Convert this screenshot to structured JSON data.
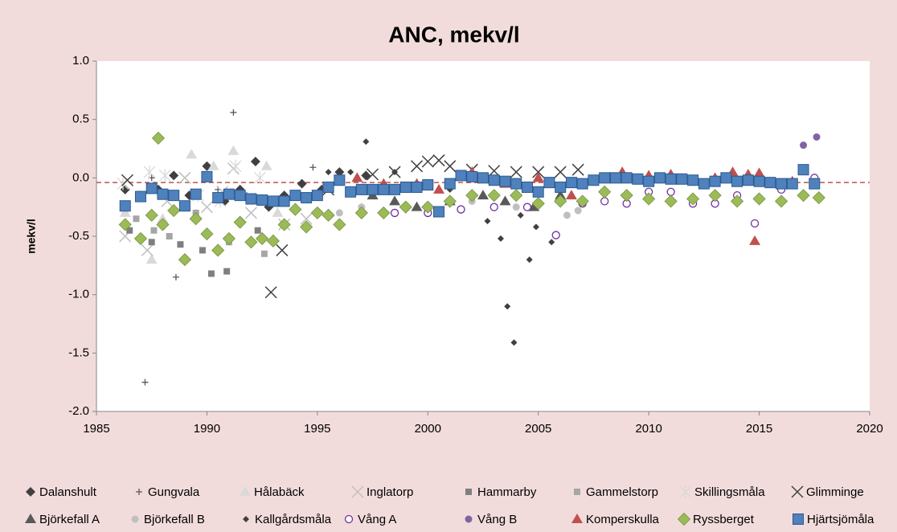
{
  "chart_data": {
    "type": "scatter",
    "title": "ANC, mekv/l",
    "y_label": "mekv/l",
    "xlim": [
      1985,
      2020
    ],
    "xticks": [
      1985,
      1990,
      1995,
      2000,
      2005,
      2010,
      2015,
      2020
    ],
    "ylim": [
      -2.0,
      1.0
    ],
    "yticks": [
      {
        "value": -2.0,
        "label": "-2.0"
      },
      {
        "value": -1.5,
        "label": "-1.5"
      },
      {
        "value": -1.0,
        "label": "-1.0"
      },
      {
        "value": -0.5,
        "label": "-0.5"
      },
      {
        "value": 0.0,
        "label": "0.0"
      },
      {
        "value": 0.5,
        "label": "0.5"
      },
      {
        "value": 1.0,
        "label": "1.0"
      }
    ],
    "reference_line": {
      "value": -0.04,
      "color": "#c0504d"
    },
    "series": [
      {
        "name": "Dalanshult",
        "color": "#404040",
        "marker": "diamond",
        "x": [
          1986.3,
          1987,
          1987.8,
          1988.5,
          1989.2,
          1990,
          1990.8,
          1991.5,
          1992.2,
          1992.8,
          1993.5,
          1994.3,
          1995.2,
          1996,
          1997.2
        ],
        "values": [
          -0.1,
          -0.15,
          -0.1,
          0.02,
          -0.15,
          0.1,
          -0.2,
          -0.1,
          0.14,
          -0.25,
          -0.15,
          -0.05,
          -0.1,
          0.05,
          0.02
        ]
      },
      {
        "name": "Gungvala",
        "color": "#595959",
        "marker": "plus",
        "x": [
          1986.3,
          1987.2,
          1987.5,
          1988.6,
          1989.5,
          1990.5,
          1991.2,
          1991.8,
          1992.5,
          1994.8
        ],
        "values": [
          -0.3,
          -1.75,
          0.0,
          -0.85,
          -0.3,
          -0.1,
          0.56,
          -0.15,
          -0.5,
          0.09
        ]
      },
      {
        "name": "Hålabäck",
        "color": "#d9d9d9",
        "marker": "triangle",
        "x": [
          1986.3,
          1987.5,
          1988,
          1989.3,
          1990.3,
          1991.2,
          1992.7,
          1993.2
        ],
        "values": [
          -0.3,
          -0.7,
          -0.35,
          0.2,
          0.1,
          0.23,
          0.1,
          -0.3
        ]
      },
      {
        "name": "Inglatorp",
        "color": "#bfbfbf",
        "marker": "x",
        "x": [
          1986.3,
          1987.3,
          1988.2,
          1989,
          1990,
          1990.7,
          1991.2,
          1992,
          1993.5,
          1994.5
        ],
        "values": [
          -0.5,
          -0.62,
          -0.2,
          0,
          -0.25,
          -0.12,
          0.08,
          -0.3,
          -0.4,
          -0.35
        ]
      },
      {
        "name": "Hammarby",
        "color": "#7f7f7f",
        "marker": "square",
        "x": [
          1986.5,
          1987.5,
          1988.8,
          1989.8,
          1990.2,
          1990.9,
          1992.3
        ],
        "values": [
          -0.45,
          -0.55,
          -0.57,
          -0.62,
          -0.82,
          -0.8,
          -0.45
        ]
      },
      {
        "name": "Gammelstorp",
        "color": "#a6a6a6",
        "marker": "square",
        "x": [
          1986.8,
          1987.6,
          1988.3,
          1989.5,
          1991,
          1992.6
        ],
        "values": [
          -0.35,
          -0.45,
          -0.5,
          -0.3,
          -0.55,
          -0.65
        ]
      },
      {
        "name": "Skillingsmåla",
        "color": "#d9d9d9",
        "marker": "asterisk",
        "x": [
          1986.2,
          1987.4,
          1988.1,
          1989.6,
          1990.6,
          1991.3,
          1992.4
        ],
        "values": [
          -0.05,
          0.05,
          0.02,
          -0.15,
          -0.2,
          0.1,
          0.0
        ]
      },
      {
        "name": "Glimminge",
        "color": "#404040",
        "marker": "x",
        "x": [
          1986.4,
          1992.9,
          1993.4,
          1995.5,
          1997.5,
          1998.5,
          1999.5,
          2000,
          2000.5,
          2001,
          2002,
          2003,
          2004,
          2005,
          2006,
          2006.8
        ],
        "values": [
          -0.02,
          -0.98,
          -0.62,
          -0.1,
          0.03,
          0.05,
          0.1,
          0.14,
          0.15,
          0.1,
          0.07,
          0.06,
          0.05,
          0.05,
          0.05,
          0.07
        ]
      },
      {
        "name": "Björkefall A",
        "color": "#595959",
        "marker": "triangle",
        "x": [
          1997.5,
          1998.5,
          1999.5,
          2001,
          2002.5,
          2003.5,
          2004.8,
          2006
        ],
        "values": [
          -0.15,
          -0.2,
          -0.25,
          -0.2,
          -0.15,
          -0.2,
          -0.25,
          -0.15
        ]
      },
      {
        "name": "Björkefall B",
        "color": "#bfbfbf",
        "marker": "circle",
        "x": [
          1996,
          1997,
          1998.5,
          2000,
          2002,
          2004,
          2006.3,
          2006.8
        ],
        "values": [
          -0.3,
          -0.25,
          -0.3,
          -0.28,
          -0.2,
          -0.25,
          -0.32,
          -0.28
        ]
      },
      {
        "name": "Kallgårdsmåla",
        "color": "#404040",
        "marker": "small-diamond",
        "x": [
          1995.5,
          1996.5,
          1997.2,
          1998.5,
          2001,
          2002.7,
          2003.3,
          2003.6,
          2003.9,
          2004.2,
          2004.6,
          2004.9,
          2005.6
        ],
        "values": [
          0.05,
          0.05,
          0.31,
          0.05,
          -0.1,
          -0.37,
          -0.52,
          -1.1,
          -1.41,
          -0.32,
          -0.7,
          -0.42,
          -0.55
        ]
      },
      {
        "name": "Vång A",
        "color": "#7030a0",
        "marker": "open-circle",
        "x": [
          1997,
          1998.5,
          2000,
          2001.5,
          2003,
          2004.5,
          2005.8,
          2007,
          2008,
          2009,
          2010,
          2011,
          2012,
          2013,
          2014,
          2014.8,
          2016,
          2017.5
        ],
        "values": [
          -0.3,
          -0.3,
          -0.3,
          -0.27,
          -0.25,
          -0.25,
          -0.49,
          -0.22,
          -0.2,
          -0.22,
          -0.12,
          -0.12,
          -0.22,
          -0.22,
          -0.15,
          -0.39,
          -0.1,
          0.0
        ]
      },
      {
        "name": "Vång B",
        "color": "#8064a2",
        "marker": "circle",
        "x": [
          2017,
          2017.6
        ],
        "values": [
          0.28,
          0.35
        ]
      },
      {
        "name": "Komperskulla",
        "color": "#c0504d",
        "marker": "triangle",
        "x": [
          1996.8,
          1998,
          1999.5,
          2000.5,
          2002,
          2003.5,
          2005,
          2006.5,
          2008,
          2008.8,
          2010,
          2011,
          2012,
          2013,
          2013.8,
          2014.5,
          2014.8,
          2015,
          2016.5,
          2017.5
        ],
        "values": [
          0,
          -0.05,
          -0.05,
          -0.1,
          0.05,
          -0.05,
          0,
          -0.15,
          0,
          0.05,
          0.02,
          0.03,
          -0.02,
          0,
          0.05,
          0.03,
          -0.54,
          0.04,
          -0.03,
          -0.05
        ]
      },
      {
        "name": "Ryssberget",
        "color": "#9bbb59",
        "marker": "big-diamond",
        "x": [
          1986.3,
          1987,
          1987.5,
          1987.8,
          1988,
          1988.5,
          1989,
          1989.5,
          1990,
          1990.5,
          1991,
          1991.5,
          1992,
          1992.5,
          1993,
          1993.5,
          1994,
          1994.5,
          1995,
          1995.5,
          1996,
          1997,
          1998,
          1999,
          2000,
          2001,
          2002,
          2003,
          2004,
          2005,
          2006,
          2007,
          2008,
          2009,
          2010,
          2011,
          2012,
          2013,
          2014,
          2015,
          2016,
          2017,
          2017.7
        ],
        "values": [
          -0.4,
          -0.52,
          -0.32,
          0.34,
          -0.4,
          -0.28,
          -0.7,
          -0.35,
          -0.48,
          -0.62,
          -0.52,
          -0.38,
          -0.55,
          -0.52,
          -0.54,
          -0.4,
          -0.27,
          -0.42,
          -0.3,
          -0.32,
          -0.4,
          -0.3,
          -0.3,
          -0.25,
          -0.25,
          -0.2,
          -0.15,
          -0.15,
          -0.15,
          -0.22,
          -0.2,
          -0.2,
          -0.12,
          -0.15,
          -0.18,
          -0.2,
          -0.18,
          -0.15,
          -0.2,
          -0.18,
          -0.2,
          -0.15,
          -0.17
        ]
      },
      {
        "name": "Hjärtsjömåla",
        "color": "#4f81bd",
        "marker": "big-square",
        "x": [
          1986.3,
          1987,
          1987.5,
          1988,
          1988.5,
          1989,
          1989.5,
          1990,
          1990.5,
          1991,
          1991.5,
          1992,
          1992.5,
          1993,
          1993.5,
          1994,
          1994.5,
          1995,
          1995.5,
          1996,
          1996.5,
          1997,
          1997.5,
          1998,
          1998.5,
          1999,
          1999.5,
          2000,
          2000.5,
          2001,
          2001.5,
          2002,
          2002.5,
          2003,
          2003.5,
          2004,
          2004.5,
          2005,
          2005.5,
          2006,
          2006.5,
          2007,
          2007.5,
          2008,
          2008.5,
          2009,
          2009.5,
          2010,
          2010.5,
          2011,
          2011.5,
          2012,
          2012.5,
          2013,
          2013.5,
          2014,
          2014.5,
          2015,
          2015.5,
          2016,
          2016.5,
          2017,
          2017.5
        ],
        "values": [
          -0.24,
          -0.16,
          -0.09,
          -0.14,
          -0.15,
          -0.24,
          -0.14,
          0.01,
          -0.17,
          -0.14,
          -0.15,
          -0.18,
          -0.19,
          -0.2,
          -0.2,
          -0.15,
          -0.17,
          -0.15,
          -0.08,
          -0.02,
          -0.12,
          -0.1,
          -0.1,
          -0.1,
          -0.1,
          -0.08,
          -0.08,
          -0.06,
          -0.29,
          -0.05,
          0.02,
          0.01,
          0,
          -0.02,
          -0.03,
          -0.05,
          -0.08,
          -0.12,
          -0.04,
          -0.08,
          -0.04,
          -0.05,
          -0.02,
          0,
          0,
          0,
          -0.01,
          -0.03,
          0,
          -0.01,
          -0.01,
          -0.02,
          -0.05,
          -0.03,
          0,
          -0.03,
          -0.02,
          -0.03,
          -0.04,
          -0.05,
          -0.05,
          0.07,
          -0.05
        ]
      }
    ]
  }
}
